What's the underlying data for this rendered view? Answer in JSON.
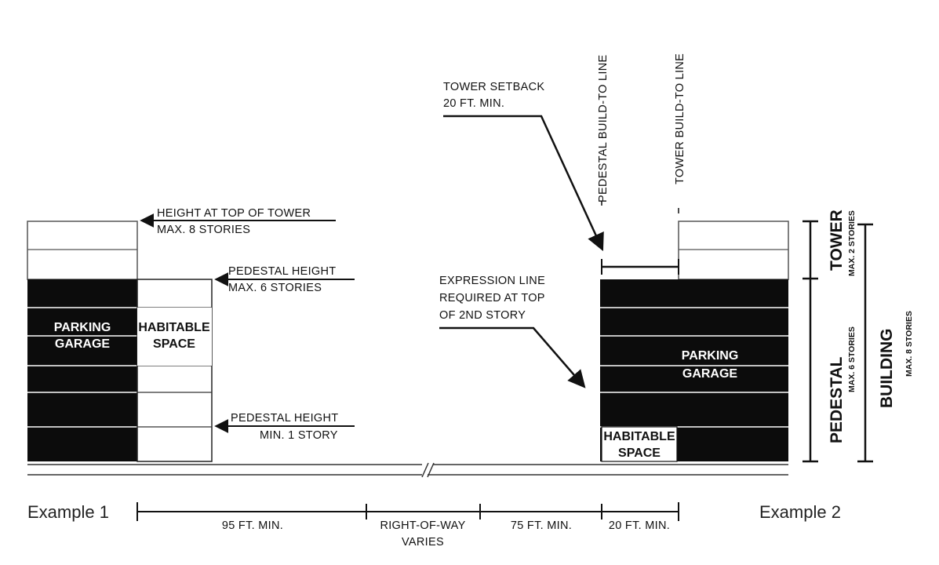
{
  "labels": {
    "height_top_tower_1": "HEIGHT AT TOP OF TOWER",
    "height_top_tower_2": "MAX. 8 STORIES",
    "pedestal_height_max_1": "PEDESTAL HEIGHT",
    "pedestal_height_max_2": "MAX. 6 STORIES",
    "pedestal_height_min_1": "PEDESTAL HEIGHT",
    "pedestal_height_min_2": "MIN. 1 STORY",
    "tower_setback_1": "TOWER SETBACK",
    "tower_setback_2": "20 FT. MIN.",
    "pedestal_build_to_line": "PEDESTAL BUILD-TO LINE",
    "tower_build_to_line": "TOWER BUILD-TO LINE",
    "expression_line_1": "EXPRESSION LINE",
    "expression_line_2": "REQUIRED AT TOP",
    "expression_line_3": "OF 2ND STORY",
    "parking_garage_1_a": "PARKING",
    "parking_garage_1_b": "GARAGE",
    "habitable_space_1_a": "HABITABLE",
    "habitable_space_1_b": "SPACE",
    "parking_garage_2_a": "PARKING",
    "parking_garage_2_b": "GARAGE",
    "habitable_space_2_a": "HABITABLE",
    "habitable_space_2_b": "SPACE",
    "tower_side": "TOWER",
    "tower_side_sub": "MAX. 2 STORIES",
    "pedestal_side": "PEDESTAL",
    "pedestal_side_sub": "MAX. 6 STORIES",
    "building_side": "BUILDING",
    "building_side_sub": "MAX. 8 STORIES",
    "example_1": "Example 1",
    "example_2": "Example 2",
    "dim_95": "95 FT. MIN.",
    "dim_row_1": "RIGHT-OF-WAY",
    "dim_row_2": "VARIES",
    "dim_75": "75 FT. MIN.",
    "dim_20": "20 FT. MIN."
  },
  "colors": {
    "ink": "#111111",
    "fill_dark": "#0c0c0c",
    "paper": "#ffffff"
  }
}
